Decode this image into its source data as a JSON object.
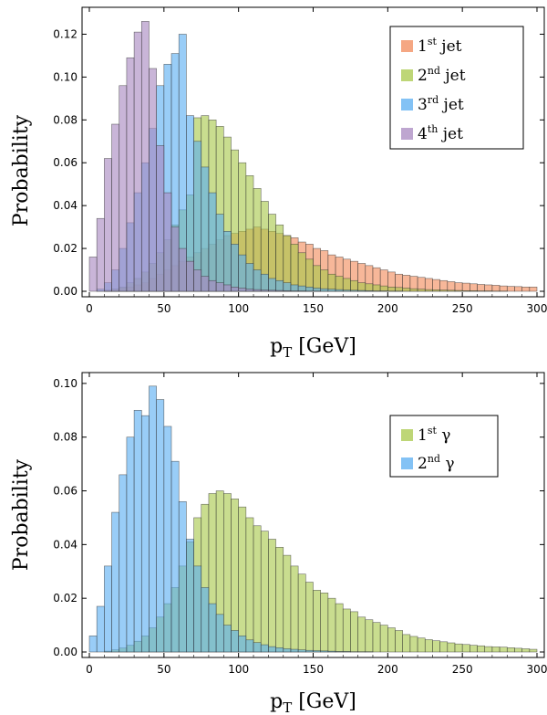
{
  "chart_data": [
    {
      "type": "bar",
      "xlabel": "p_T [GeV]",
      "ylabel": "Probability",
      "xlim": [
        0,
        300
      ],
      "ylim": [
        0,
        0.13
      ],
      "x_ticks": [
        0,
        50,
        100,
        150,
        200,
        250,
        300
      ],
      "y_ticks": [
        0.0,
        0.02,
        0.04,
        0.06,
        0.08,
        0.1,
        0.12
      ],
      "y_tick_labels": [
        "0.00",
        "0.02",
        "0.04",
        "0.06",
        "0.08",
        "0.10",
        "0.12"
      ],
      "bin_width": 5,
      "bin_start": 0,
      "legend_position": "top-right",
      "series": [
        {
          "legend_base": "1",
          "legend_sup": "st",
          "legend_rest": " jet",
          "color": "#f28a5a",
          "values": [
            0,
            0,
            0.0005,
            0.001,
            0.0015,
            0.002,
            0.003,
            0.004,
            0.006,
            0.008,
            0.01,
            0.012,
            0.014,
            0.016,
            0.018,
            0.02,
            0.022,
            0.024,
            0.026,
            0.027,
            0.028,
            0.029,
            0.03,
            0.029,
            0.028,
            0.027,
            0.026,
            0.025,
            0.023,
            0.022,
            0.02,
            0.019,
            0.017,
            0.016,
            0.015,
            0.014,
            0.013,
            0.012,
            0.011,
            0.01,
            0.009,
            0.008,
            0.0075,
            0.007,
            0.0065,
            0.006,
            0.0055,
            0.005,
            0.0045,
            0.004,
            0.0038,
            0.0035,
            0.0032,
            0.003,
            0.0028,
            0.0025,
            0.0023,
            0.0022,
            0.002,
            0.002
          ]
        },
        {
          "legend_base": "2",
          "legend_sup": "nd",
          "legend_rest": " jet",
          "color": "#a8c84a",
          "values": [
            0,
            0,
            0.0005,
            0.001,
            0.002,
            0.004,
            0.006,
            0.009,
            0.013,
            0.018,
            0.024,
            0.031,
            0.038,
            0.045,
            0.081,
            0.082,
            0.08,
            0.077,
            0.072,
            0.066,
            0.06,
            0.054,
            0.048,
            0.042,
            0.036,
            0.031,
            0.026,
            0.022,
            0.018,
            0.015,
            0.012,
            0.01,
            0.008,
            0.007,
            0.006,
            0.005,
            0.004,
            0.0035,
            0.003,
            0.0025,
            0.002,
            0.0018,
            0.0015,
            0.0012,
            0.001,
            0.0008,
            0.0007,
            0.0006,
            0.0005,
            0.0004,
            0.0003,
            0.0003,
            0.0002,
            0.0002,
            0.0001,
            0.0001,
            0,
            0,
            0,
            0
          ]
        },
        {
          "legend_base": "3",
          "legend_sup": "rd",
          "legend_rest": " jet",
          "color": "#5aaef2",
          "values": [
            0,
            0.001,
            0.004,
            0.01,
            0.02,
            0.032,
            0.046,
            0.06,
            0.076,
            0.096,
            0.106,
            0.111,
            0.12,
            0.082,
            0.07,
            0.058,
            0.046,
            0.036,
            0.028,
            0.022,
            0.017,
            0.013,
            0.01,
            0.008,
            0.006,
            0.005,
            0.004,
            0.003,
            0.0025,
            0.002,
            0.0015,
            0.0012,
            0.001,
            0.0008,
            0.0006,
            0.0005,
            0.0004,
            0.0003,
            0.0002,
            0.0002,
            0.0001,
            0.0001,
            0,
            0,
            0,
            0,
            0,
            0,
            0,
            0,
            0,
            0,
            0,
            0,
            0,
            0,
            0,
            0,
            0,
            0
          ]
        },
        {
          "legend_base": "4",
          "legend_sup": "th",
          "legend_rest": " jet",
          "color": "#a888c0",
          "values": [
            0.016,
            0.034,
            0.062,
            0.078,
            0.096,
            0.109,
            0.121,
            0.126,
            0.104,
            0.068,
            0.046,
            0.03,
            0.02,
            0.014,
            0.01,
            0.007,
            0.005,
            0.004,
            0.003,
            0.002,
            0.0015,
            0.001,
            0.0008,
            0.0006,
            0.0005,
            0.0004,
            0.0003,
            0.0002,
            0.0002,
            0.0001,
            0.0001,
            0,
            0,
            0,
            0,
            0,
            0,
            0,
            0,
            0,
            0,
            0,
            0,
            0,
            0,
            0,
            0,
            0,
            0,
            0,
            0,
            0,
            0,
            0,
            0,
            0,
            0,
            0,
            0,
            0
          ]
        }
      ]
    },
    {
      "type": "bar",
      "xlabel": "p_T [GeV]",
      "ylabel": "Probability",
      "xlim": [
        0,
        300
      ],
      "ylim": [
        0,
        0.102
      ],
      "x_ticks": [
        0,
        50,
        100,
        150,
        200,
        250,
        300
      ],
      "y_ticks": [
        0.0,
        0.02,
        0.04,
        0.06,
        0.08,
        0.1
      ],
      "y_tick_labels": [
        "0.00",
        "0.02",
        "0.04",
        "0.06",
        "0.08",
        "0.10"
      ],
      "bin_width": 5,
      "bin_start": 0,
      "legend_position": "top-right",
      "series": [
        {
          "legend_base": "1",
          "legend_sup": "st",
          "legend_rest": " γ",
          "color": "#a8c84a",
          "values": [
            0,
            0,
            0.0003,
            0.0008,
            0.0015,
            0.0025,
            0.004,
            0.006,
            0.009,
            0.013,
            0.018,
            0.024,
            0.032,
            0.041,
            0.05,
            0.055,
            0.059,
            0.06,
            0.059,
            0.057,
            0.054,
            0.05,
            0.047,
            0.045,
            0.042,
            0.039,
            0.036,
            0.032,
            0.029,
            0.026,
            0.023,
            0.022,
            0.02,
            0.018,
            0.016,
            0.015,
            0.013,
            0.012,
            0.011,
            0.01,
            0.009,
            0.008,
            0.0065,
            0.0058,
            0.0052,
            0.0046,
            0.0042,
            0.0038,
            0.0034,
            0.003,
            0.0028,
            0.0025,
            0.0023,
            0.002,
            0.0019,
            0.0018,
            0.0016,
            0.0014,
            0.0012,
            0.001
          ]
        },
        {
          "legend_base": "2",
          "legend_sup": "nd",
          "legend_rest": " γ",
          "color": "#5aaef2",
          "values": [
            0.006,
            0.017,
            0.032,
            0.052,
            0.066,
            0.08,
            0.09,
            0.088,
            0.099,
            0.094,
            0.084,
            0.071,
            0.056,
            0.042,
            0.032,
            0.024,
            0.018,
            0.014,
            0.01,
            0.008,
            0.006,
            0.0045,
            0.0035,
            0.0027,
            0.002,
            0.0016,
            0.0012,
            0.001,
            0.0008,
            0.0006,
            0.0005,
            0.0004,
            0.0003,
            0.0002,
            0.0002,
            0.0001,
            0.0001,
            0.0001,
            0,
            0,
            0,
            0,
            0,
            0,
            0,
            0,
            0,
            0,
            0,
            0,
            0,
            0,
            0,
            0,
            0,
            0,
            0,
            0,
            0,
            0
          ]
        }
      ]
    }
  ]
}
